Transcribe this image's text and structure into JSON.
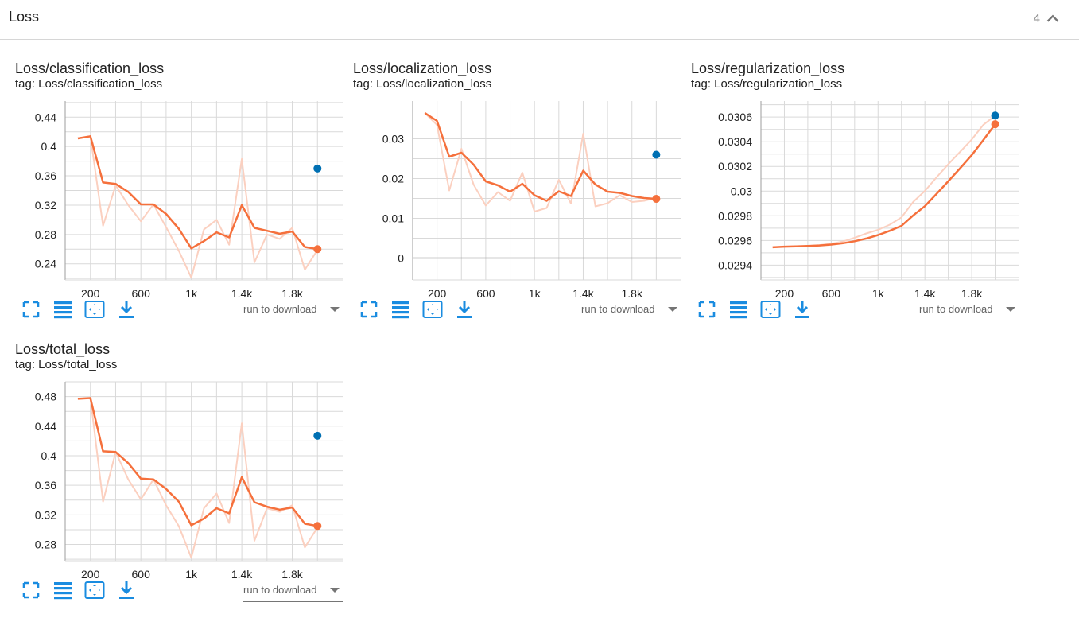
{
  "header": {
    "title": "Loss",
    "count": "4"
  },
  "toolbar": {
    "download_placeholder": "run to download"
  },
  "colors": {
    "line": "#f5703c",
    "raw": "#fbd0c0",
    "point_blue": "#0070b3",
    "grid": "#d9d9d9",
    "axis": "#9e9e9e",
    "icon": "#1a8ce0"
  },
  "chart_data": [
    {
      "type": "line",
      "title": "Loss/classification_loss",
      "tag": "tag: Loss/classification_loss",
      "x_ticks": [
        "200",
        "600",
        "1k",
        "1.4k",
        "1.8k"
      ],
      "x_tick_values": [
        200,
        600,
        1000,
        1400,
        1800
      ],
      "y_ticks": [
        "0.24",
        "0.28",
        "0.32",
        "0.36",
        "0.4",
        "0.44"
      ],
      "y_tick_values": [
        0.24,
        0.28,
        0.32,
        0.36,
        0.4,
        0.44
      ],
      "xlim": [
        0,
        2200
      ],
      "ylim": [
        0.218,
        0.462
      ],
      "series": [
        {
          "role": "smoothed",
          "x": [
            100,
            200,
            300,
            400,
            500,
            600,
            700,
            800,
            900,
            1000,
            1100,
            1200,
            1300,
            1400,
            1500,
            1600,
            1700,
            1800,
            1900,
            2000
          ],
          "values": [
            0.411,
            0.414,
            0.351,
            0.349,
            0.338,
            0.321,
            0.321,
            0.308,
            0.288,
            0.261,
            0.271,
            0.283,
            0.276,
            0.32,
            0.289,
            0.285,
            0.281,
            0.284,
            0.263,
            0.26
          ]
        },
        {
          "role": "raw",
          "x": [
            100,
            200,
            300,
            400,
            500,
            600,
            700,
            800,
            900,
            1000,
            1100,
            1200,
            1300,
            1400,
            1500,
            1600,
            1700,
            1800,
            1900,
            2000
          ],
          "values": [
            0.411,
            0.414,
            0.292,
            0.347,
            0.32,
            0.298,
            0.321,
            0.29,
            0.258,
            0.221,
            0.287,
            0.3,
            0.266,
            0.383,
            0.242,
            0.28,
            0.274,
            0.289,
            0.232,
            0.259
          ]
        },
        {
          "role": "point-blue",
          "x": [
            2000
          ],
          "values": [
            0.37
          ]
        },
        {
          "role": "point-orange",
          "x": [
            2000
          ],
          "values": [
            0.26
          ]
        }
      ]
    },
    {
      "type": "line",
      "title": "Loss/localization_loss",
      "tag": "tag: Loss/localization_loss",
      "x_ticks": [
        "200",
        "600",
        "1k",
        "1.4k",
        "1.8k"
      ],
      "x_tick_values": [
        200,
        600,
        1000,
        1400,
        1800
      ],
      "y_ticks": [
        "0",
        "0.01",
        "0.02",
        "0.03"
      ],
      "y_tick_values": [
        0,
        0.01,
        0.02,
        0.03
      ],
      "xlim": [
        0,
        2200
      ],
      "ylim": [
        -0.0055,
        0.0395
      ],
      "series": [
        {
          "role": "smoothed",
          "x": [
            100,
            200,
            300,
            400,
            500,
            600,
            700,
            800,
            900,
            1000,
            1100,
            1200,
            1300,
            1400,
            1500,
            1600,
            1700,
            1800,
            1900,
            2000
          ],
          "values": [
            0.0365,
            0.0345,
            0.0255,
            0.0265,
            0.0235,
            0.0193,
            0.0183,
            0.0167,
            0.0187,
            0.0158,
            0.0144,
            0.0168,
            0.0156,
            0.022,
            0.0185,
            0.0167,
            0.0164,
            0.0156,
            0.0151,
            0.0149
          ]
        },
        {
          "role": "raw",
          "x": [
            100,
            200,
            300,
            400,
            500,
            600,
            700,
            800,
            900,
            1000,
            1100,
            1200,
            1300,
            1400,
            1500,
            1600,
            1700,
            1800,
            1900,
            2000
          ],
          "values": [
            0.0365,
            0.0335,
            0.017,
            0.0275,
            0.0185,
            0.0132,
            0.0166,
            0.0144,
            0.0215,
            0.0117,
            0.0126,
            0.0197,
            0.0137,
            0.0313,
            0.013,
            0.0138,
            0.0158,
            0.0141,
            0.0144,
            0.0152
          ]
        },
        {
          "role": "point-blue",
          "x": [
            2000
          ],
          "values": [
            0.026
          ]
        },
        {
          "role": "point-orange",
          "x": [
            2000
          ],
          "values": [
            0.0149
          ]
        }
      ]
    },
    {
      "type": "line",
      "title": "Loss/regularization_loss",
      "tag": "tag: Loss/regularization_loss",
      "x_ticks": [
        "200",
        "600",
        "1k",
        "1.4k",
        "1.8k"
      ],
      "x_tick_values": [
        200,
        600,
        1000,
        1400,
        1800
      ],
      "y_ticks": [
        "0.0294",
        "0.0296",
        "0.0298",
        "0.03",
        "0.0302",
        "0.0304",
        "0.0306"
      ],
      "y_tick_values": [
        0.0294,
        0.0296,
        0.0298,
        0.03,
        0.0302,
        0.0304,
        0.0306
      ],
      "xlim": [
        0,
        2200
      ],
      "ylim": [
        0.02928,
        0.03073
      ],
      "series": [
        {
          "role": "smoothed",
          "x": [
            100,
            200,
            300,
            400,
            500,
            600,
            700,
            800,
            900,
            1000,
            1100,
            1200,
            1300,
            1400,
            1500,
            1600,
            1700,
            1800,
            1900,
            2000
          ],
          "values": [
            0.029545,
            0.02955,
            0.029552,
            0.029555,
            0.02956,
            0.029567,
            0.029578,
            0.029594,
            0.029616,
            0.029644,
            0.029678,
            0.029718,
            0.029803,
            0.029878,
            0.029978,
            0.03008,
            0.030185,
            0.030292,
            0.030415,
            0.030542
          ]
        },
        {
          "role": "raw",
          "x": [
            100,
            200,
            300,
            400,
            500,
            600,
            700,
            800,
            900,
            1000,
            1100,
            1200,
            1300,
            1400,
            1500,
            1600,
            1700,
            1800,
            1900,
            2000
          ],
          "values": [
            0.029545,
            0.02955,
            0.029552,
            0.029556,
            0.029563,
            0.029573,
            0.029592,
            0.029622,
            0.029657,
            0.029686,
            0.029728,
            0.029787,
            0.029912,
            0.030002,
            0.030112,
            0.030218,
            0.030318,
            0.030418,
            0.030538,
            0.030612
          ]
        },
        {
          "role": "point-blue",
          "x": [
            2000
          ],
          "values": [
            0.030612
          ]
        },
        {
          "role": "point-orange",
          "x": [
            2000
          ],
          "values": [
            0.030542
          ]
        }
      ]
    },
    {
      "type": "line",
      "title": "Loss/total_loss",
      "tag": "tag: Loss/total_loss",
      "x_ticks": [
        "200",
        "600",
        "1k",
        "1.4k",
        "1.8k"
      ],
      "x_tick_values": [
        200,
        600,
        1000,
        1400,
        1800
      ],
      "y_ticks": [
        "0.28",
        "0.32",
        "0.36",
        "0.4",
        "0.44",
        "0.48"
      ],
      "y_tick_values": [
        0.28,
        0.32,
        0.36,
        0.4,
        0.44,
        0.48
      ],
      "xlim": [
        0,
        2200
      ],
      "ylim": [
        0.258,
        0.5
      ],
      "series": [
        {
          "role": "smoothed",
          "x": [
            100,
            200,
            300,
            400,
            500,
            600,
            700,
            800,
            900,
            1000,
            1100,
            1200,
            1300,
            1400,
            1500,
            1600,
            1700,
            1800,
            1900,
            2000
          ],
          "values": [
            0.477,
            0.478,
            0.406,
            0.405,
            0.39,
            0.369,
            0.368,
            0.355,
            0.338,
            0.306,
            0.315,
            0.329,
            0.322,
            0.371,
            0.337,
            0.331,
            0.327,
            0.33,
            0.308,
            0.305
          ]
        },
        {
          "role": "raw",
          "x": [
            100,
            200,
            300,
            400,
            500,
            600,
            700,
            800,
            900,
            1000,
            1100,
            1200,
            1300,
            1400,
            1500,
            1600,
            1700,
            1800,
            1900,
            2000
          ],
          "values": [
            0.477,
            0.478,
            0.338,
            0.405,
            0.368,
            0.341,
            0.368,
            0.333,
            0.305,
            0.262,
            0.329,
            0.349,
            0.309,
            0.444,
            0.285,
            0.329,
            0.324,
            0.333,
            0.276,
            0.303
          ]
        },
        {
          "role": "point-blue",
          "x": [
            2000
          ],
          "values": [
            0.427
          ]
        },
        {
          "role": "point-orange",
          "x": [
            2000
          ],
          "values": [
            0.305
          ]
        }
      ]
    }
  ]
}
